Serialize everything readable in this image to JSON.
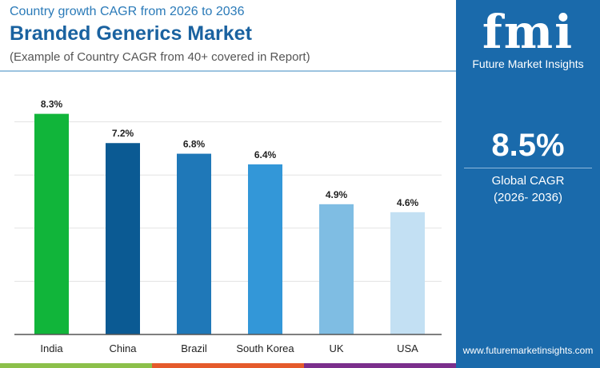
{
  "header": {
    "subtitle": "Country growth CAGR from 2026 to 2036",
    "title": "Branded Generics Market",
    "note": "(Example of Country CAGR from 40+ covered in Report)"
  },
  "panel": {
    "logo": "fmi",
    "logo_sub": "Future Market Insights",
    "value": "8.5%",
    "label1": "Global CAGR",
    "label2": "(2026- 2036)",
    "url": "www.futuremarketinsights.com"
  },
  "colors": {
    "panel": "#1a6aab",
    "stripes": [
      "#8cc04a",
      "#e55a2b",
      "#7b2f8c"
    ]
  },
  "chart_data": {
    "type": "bar",
    "categories": [
      "India",
      "China",
      "Brazil",
      "South Korea",
      "UK",
      "USA"
    ],
    "values": [
      8.3,
      7.2,
      6.8,
      6.4,
      4.9,
      4.6
    ],
    "labels": [
      "8.3%",
      "7.2%",
      "6.8%",
      "6.4%",
      "4.9%",
      "4.6%"
    ],
    "colors": [
      "#11b53a",
      "#0b5a93",
      "#1f78b8",
      "#3397d8",
      "#7fbde3",
      "#c3e0f3"
    ],
    "ylim": [
      0,
      8.3
    ],
    "grid": true,
    "gridlines": [
      2,
      4,
      6,
      8
    ]
  }
}
